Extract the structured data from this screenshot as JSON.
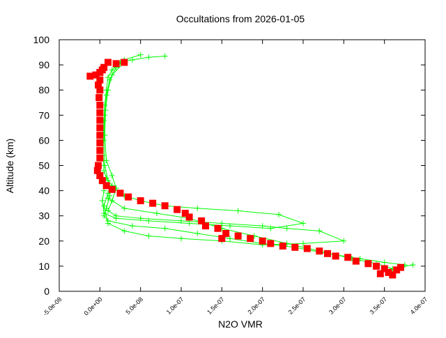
{
  "chart_data": {
    "type": "scatter",
    "title": "Occultations from 2026-01-05",
    "xlabel": "N2O VMR",
    "ylabel": "Altitude (km)",
    "xlim": [
      -5e-08,
      4e-07
    ],
    "ylim": [
      0,
      100
    ],
    "x_ticks": [
      -5e-08,
      0,
      5e-08,
      1e-07,
      1.5e-07,
      2e-07,
      2.5e-07,
      3e-07,
      3.5e-07,
      4e-07
    ],
    "x_tick_labels": [
      "-5.0e-08",
      "0.0e+00",
      "5.0e-08",
      "1.0e-07",
      "1.5e-07",
      "2.0e-07",
      "2.5e-07",
      "3.0e-07",
      "3.5e-07",
      "4.0e-07"
    ],
    "y_ticks": [
      0,
      10,
      20,
      30,
      40,
      50,
      60,
      70,
      80,
      90,
      100
    ],
    "y_tick_labels": [
      "0",
      "10",
      "20",
      "30",
      "40",
      "50",
      "60",
      "70",
      "80",
      "90",
      "100"
    ],
    "grid": false,
    "series": [
      {
        "style": "linespoints-plus",
        "color": "#00ff00",
        "profiles": [
          [
            [
              8e-08,
              93.5
            ],
            [
              6e-08,
              93
            ],
            [
              4e-08,
              92
            ],
            [
              2.5e-08,
              91
            ],
            [
              1.5e-08,
              88
            ],
            [
              1e-08,
              85
            ],
            [
              8e-09,
              80
            ],
            [
              6e-09,
              74
            ],
            [
              5e-09,
              68
            ],
            [
              4e-09,
              60
            ],
            [
              4e-09,
              54
            ],
            [
              5e-09,
              48
            ],
            [
              8e-09,
              45
            ],
            [
              1.5e-08,
              42
            ],
            [
              3e-08,
              38
            ],
            [
              5e-08,
              36
            ],
            [
              8e-08,
              34
            ],
            [
              1.2e-07,
              33
            ],
            [
              1.7e-07,
              32
            ],
            [
              2.2e-07,
              30.5
            ],
            [
              2.5e-07,
              27
            ],
            [
              2.1e-07,
              25
            ],
            [
              1.6e-07,
              26
            ],
            [
              1.1e-07,
              27
            ],
            [
              6e-08,
              28
            ],
            [
              2e-08,
              29
            ],
            [
              5e-09,
              31
            ],
            [
              3e-09,
              36
            ],
            [
              5e-09,
              40
            ]
          ],
          [
            [
              5e-08,
              94
            ],
            [
              3e-08,
              92
            ],
            [
              2e-08,
              89
            ],
            [
              1.2e-08,
              84
            ],
            [
              8e-09,
              78
            ],
            [
              6e-09,
              70
            ],
            [
              5e-09,
              60
            ],
            [
              6e-09,
              50
            ],
            [
              1e-08,
              44
            ],
            [
              1.2e-08,
              38
            ],
            [
              8e-09,
              33
            ],
            [
              5e-09,
              30
            ],
            [
              1e-08,
              28
            ],
            [
              4e-08,
              26
            ],
            [
              8e-08,
              25
            ],
            [
              1.2e-07,
              23
            ],
            [
              1.6e-07,
              21
            ],
            [
              2e-07,
              19
            ],
            [
              2.4e-07,
              17.5
            ],
            [
              2.8e-07,
              15
            ],
            [
              3.2e-07,
              13
            ],
            [
              3.5e-07,
              11.5
            ],
            [
              3.75e-07,
              10.5
            ]
          ],
          [
            [
              3e-08,
              91
            ],
            [
              1.5e-08,
              86
            ],
            [
              1e-08,
              80
            ],
            [
              7e-09,
              72
            ],
            [
              6e-09,
              62
            ],
            [
              8e-09,
              52
            ],
            [
              1.5e-08,
              46
            ],
            [
              2e-08,
              41
            ],
            [
              1.5e-08,
              36
            ],
            [
              1e-08,
              32
            ],
            [
              2e-08,
              30
            ],
            [
              5e-08,
              29
            ],
            [
              1e-07,
              28
            ],
            [
              1.5e-07,
              27
            ],
            [
              2e-07,
              26
            ],
            [
              2.3e-07,
              25
            ],
            [
              2.7e-07,
              24
            ],
            [
              3e-07,
              20
            ],
            [
              2.5e-07,
              19
            ],
            [
              2e-07,
              18.5
            ],
            [
              1.5e-07,
              20
            ],
            [
              1e-07,
              21
            ],
            [
              6e-08,
              22
            ],
            [
              3e-08,
              24
            ],
            [
              1e-08,
              27
            ],
            [
              5e-09,
              34
            ],
            [
              1e-08,
              39
            ]
          ],
          [
            [
              1e-08,
              37
            ],
            [
              3e-08,
              33
            ],
            [
              7e-08,
              31
            ],
            [
              1.1e-07,
              29
            ],
            [
              1.5e-07,
              25
            ],
            [
              1.9e-07,
              22
            ],
            [
              2.3e-07,
              19
            ],
            [
              2.7e-07,
              16
            ],
            [
              3.1e-07,
              13
            ],
            [
              3.4e-07,
              11
            ],
            [
              3.6e-07,
              9
            ],
            [
              3.85e-07,
              10.5
            ]
          ]
        ]
      },
      {
        "style": "points-square",
        "color": "#ff0000",
        "points": [
          [
            3e-08,
            91
          ],
          [
            2e-08,
            90.5
          ],
          [
            1e-08,
            91
          ],
          [
            5e-09,
            89
          ],
          [
            -1.2e-08,
            85.5
          ],
          [
            -5e-09,
            86
          ],
          [
            0,
            87
          ],
          [
            3e-09,
            88
          ],
          [
            0,
            84
          ],
          [
            -2e-09,
            82
          ],
          [
            0,
            80
          ],
          [
            -1e-09,
            77
          ],
          [
            0,
            74
          ],
          [
            0,
            71
          ],
          [
            0,
            68
          ],
          [
            0,
            65
          ],
          [
            0,
            62
          ],
          [
            0,
            59
          ],
          [
            0,
            56
          ],
          [
            0,
            53
          ],
          [
            -2e-09,
            50
          ],
          [
            -3e-09,
            48
          ],
          [
            0,
            46
          ],
          [
            3e-09,
            44
          ],
          [
            8e-09,
            42
          ],
          [
            1.5e-08,
            40.5
          ],
          [
            2.5e-08,
            39
          ],
          [
            3.5e-08,
            37.5
          ],
          [
            5e-08,
            36
          ],
          [
            6.5e-08,
            35
          ],
          [
            8e-08,
            34
          ],
          [
            9.5e-08,
            32.5
          ],
          [
            1.05e-07,
            31
          ],
          [
            1.1e-07,
            29.5
          ],
          [
            1.25e-07,
            28
          ],
          [
            1.3e-07,
            26
          ],
          [
            1.45e-07,
            25
          ],
          [
            1.55e-07,
            23
          ],
          [
            1.5e-07,
            21
          ],
          [
            1.7e-07,
            22
          ],
          [
            1.85e-07,
            21
          ],
          [
            2e-07,
            20
          ],
          [
            2.1e-07,
            19
          ],
          [
            2.25e-07,
            18
          ],
          [
            2.4e-07,
            17.5
          ],
          [
            2.55e-07,
            17
          ],
          [
            2.7e-07,
            16
          ],
          [
            2.8e-07,
            15
          ],
          [
            2.9e-07,
            14
          ],
          [
            3.05e-07,
            13.5
          ],
          [
            3.15e-07,
            12
          ],
          [
            3.3e-07,
            11
          ],
          [
            3.4e-07,
            10
          ],
          [
            3.5e-07,
            9
          ],
          [
            3.55e-07,
            7.5
          ],
          [
            3.6e-07,
            6.5
          ],
          [
            3.65e-07,
            8.5
          ],
          [
            3.7e-07,
            9.5
          ],
          [
            3.45e-07,
            7
          ]
        ]
      }
    ]
  }
}
